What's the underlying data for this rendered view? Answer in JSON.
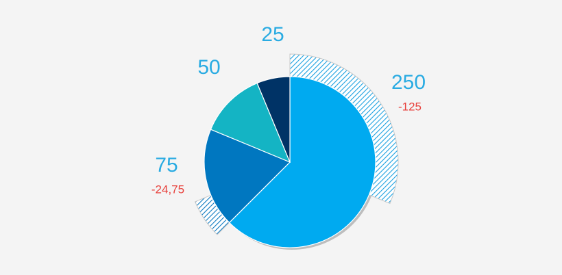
{
  "chart_data": {
    "type": "pie",
    "categories": [
      null,
      null,
      null,
      null
    ],
    "values": [
      250,
      75,
      50,
      25
    ],
    "colors": [
      "#00aaf0",
      "#0077c0",
      "#14b4c4",
      "#003366"
    ],
    "changes": [
      -125,
      -24.75,
      null,
      null
    ],
    "change_labels": [
      "-125",
      "-24,75",
      null,
      null
    ]
  }
}
